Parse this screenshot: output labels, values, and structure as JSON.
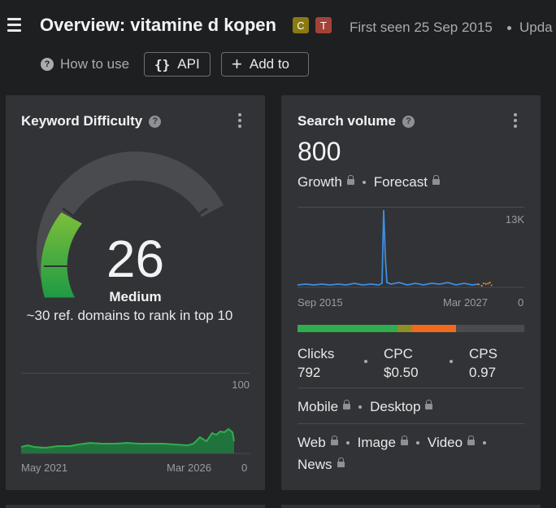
{
  "header": {
    "title": "Overview: vitamine d kopen",
    "badges": [
      {
        "letter": "C",
        "color": "#8a7a10"
      },
      {
        "letter": "T",
        "color": "#a34237"
      }
    ],
    "first_seen": "First seen 25 Sep 2015",
    "updated_truncated": "Upda"
  },
  "toolbar": {
    "how_to_use": "How to use",
    "api_label": "API",
    "add_to_label": "Add to"
  },
  "kd": {
    "title": "Keyword Difficulty",
    "value": "26",
    "level": "Medium",
    "note": "~30 ref. domains to rank in top 10",
    "fill_fraction": 0.26,
    "color_low": "#2fae4f",
    "chart": {
      "y_max": "100",
      "y_min": "0",
      "x_start": "May 2021",
      "x_end": "Mar 2026"
    }
  },
  "sv": {
    "title": "Search volume",
    "value": "800",
    "growth": "Growth",
    "forecast": "Forecast",
    "chart": {
      "y_max": "13K",
      "y_min": "0",
      "x_start": "Sep 2015",
      "x_end": "Mar 2027"
    },
    "intent_bar": [
      {
        "label": "green",
        "fraction": 0.44,
        "color": "#2fae4f"
      },
      {
        "label": "olive",
        "fraction": 0.065,
        "color": "#8f8f25"
      },
      {
        "label": "orange",
        "fraction": 0.195,
        "color": "#f06a1d"
      },
      {
        "label": "rest",
        "fraction": 0.3,
        "color": "#4a4b4e"
      }
    ],
    "clicks_label": "Clicks",
    "clicks_value": "792",
    "cpc_label": "CPC",
    "cpc_value": "$0.50",
    "cps_label": "CPS",
    "cps_value": "0.97",
    "mobile": "Mobile",
    "desktop": "Desktop",
    "web": "Web",
    "image": "Image",
    "video": "Video",
    "news": "News"
  }
}
